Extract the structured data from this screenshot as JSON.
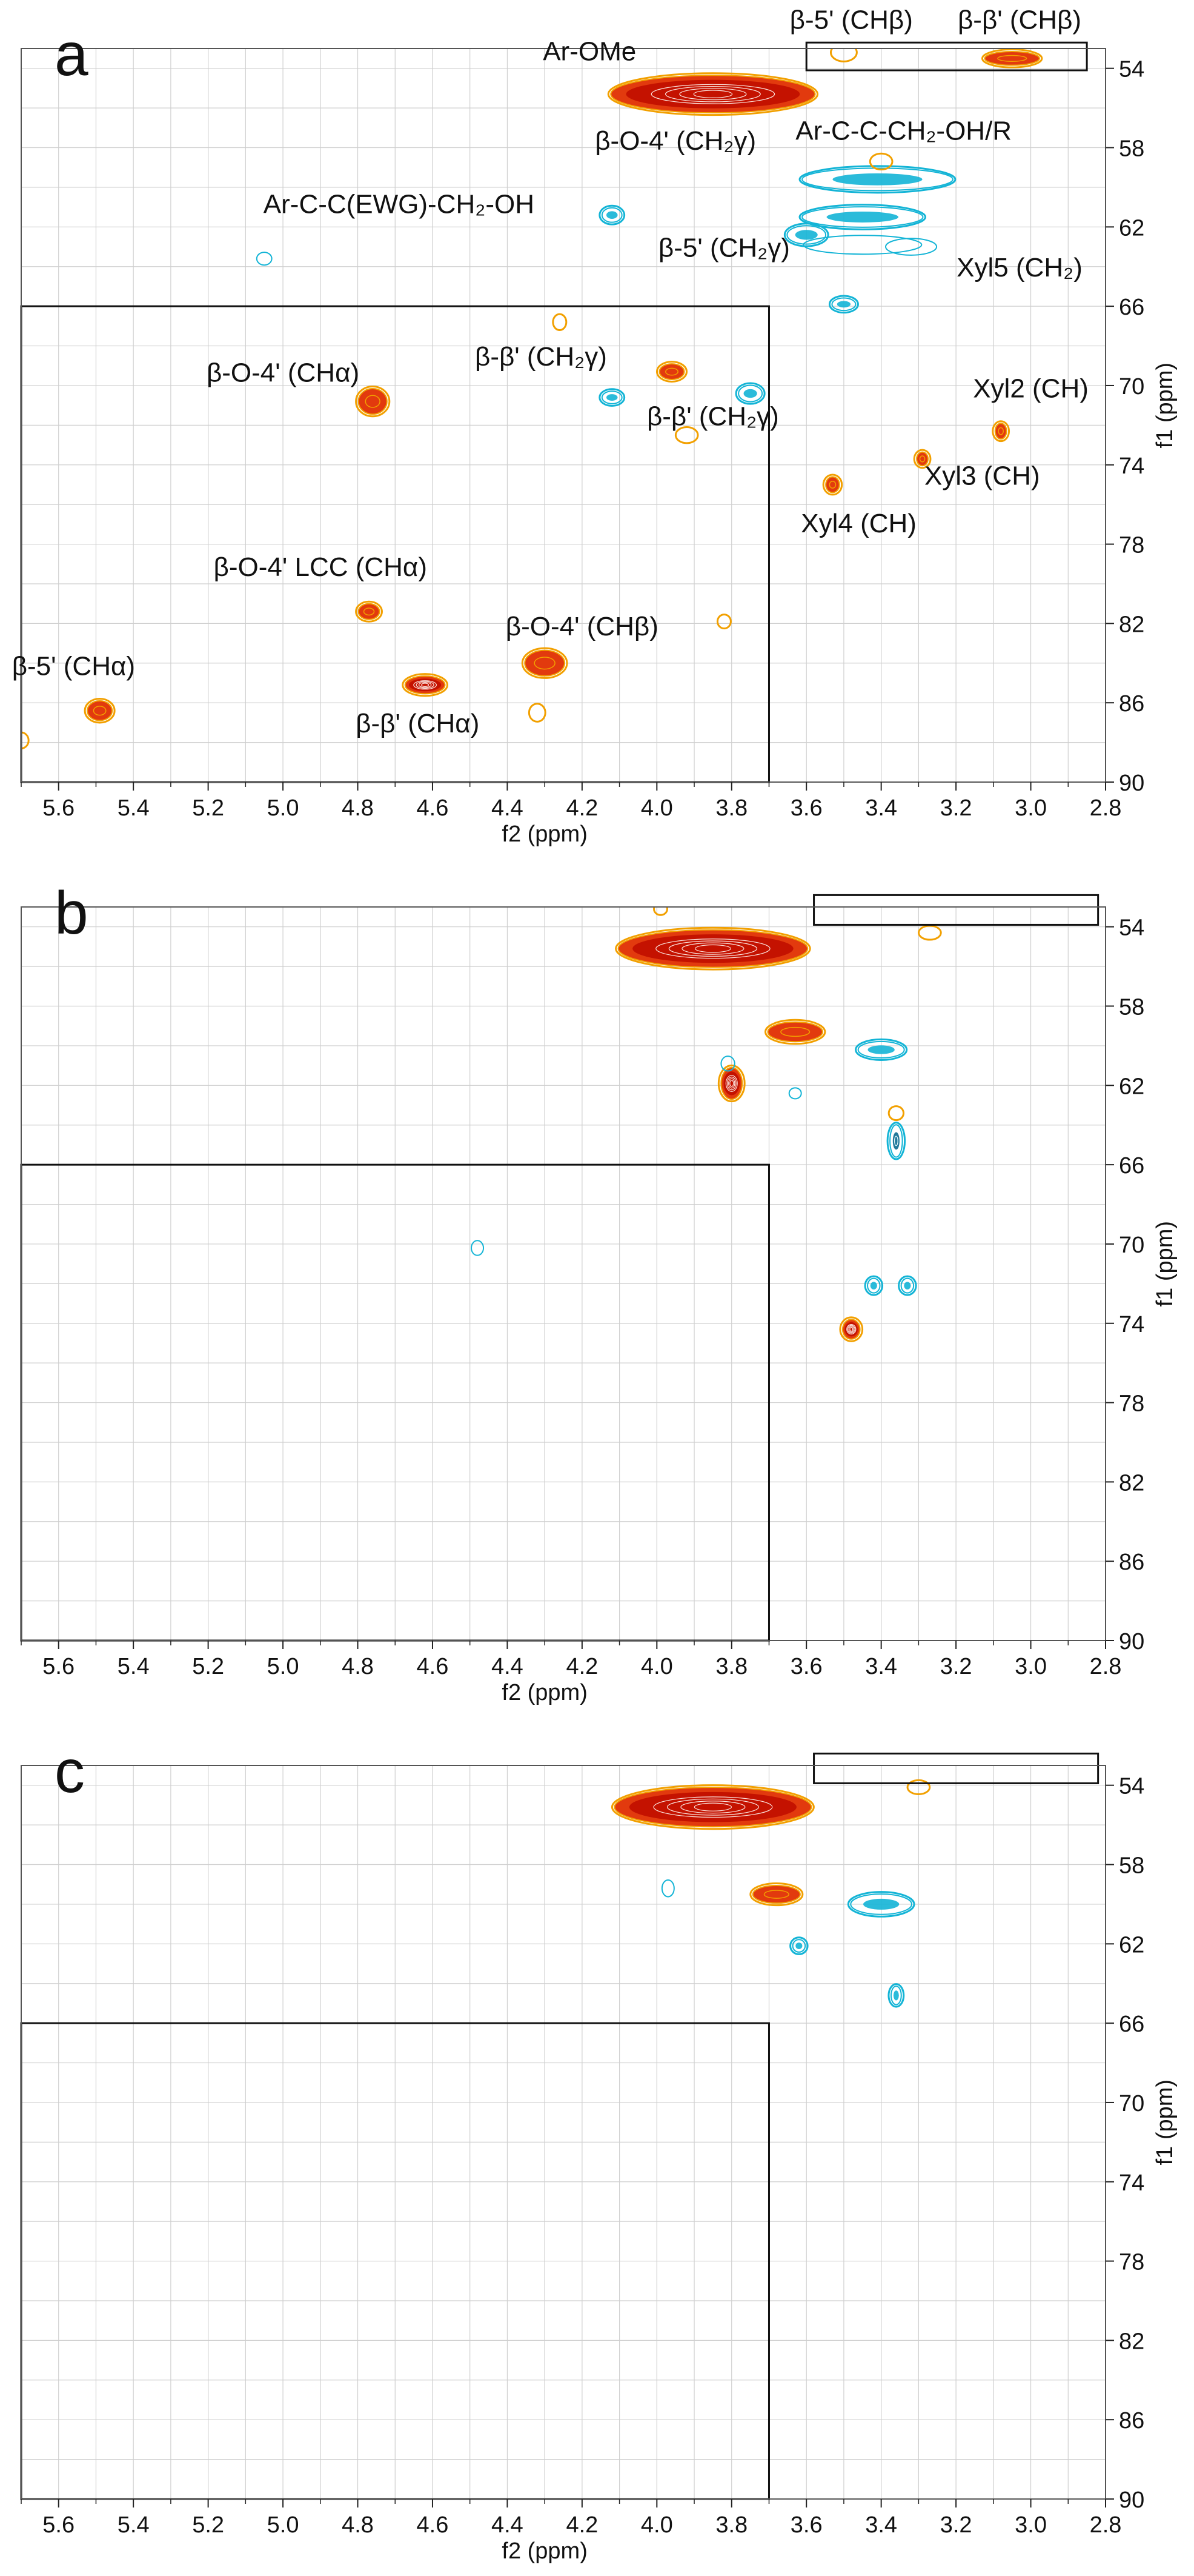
{
  "colors": {
    "positive_core": "#c41200",
    "positive_mid": "#e23a0e",
    "positive_edge": "#f2a000",
    "negative": "#13b4d6",
    "grid": "#cfcfcf",
    "frame": "#111111"
  },
  "chart_data": [
    {
      "type": "heatmap",
      "panel_label": "a",
      "xlabel": "f2 (ppm)",
      "ylabel": "f1 (ppm)",
      "xlim": [
        5.7,
        2.8
      ],
      "ylim": [
        53,
        90
      ],
      "x_ticks": [
        "5.6",
        "5.4",
        "5.2",
        "5.0",
        "4.8",
        "4.6",
        "4.4",
        "4.2",
        "4.0",
        "3.8",
        "3.6",
        "3.4",
        "3.2",
        "3.0",
        "2.8"
      ],
      "y_ticks": [
        "54",
        "58",
        "62",
        "66",
        "70",
        "74",
        "78",
        "82",
        "86",
        "90"
      ],
      "boxes": [
        {
          "x1": 5.7,
          "x2": 3.7,
          "y1": 66,
          "y2": 90
        },
        {
          "x1": 3.6,
          "x2": 2.85,
          "y1": 52.7,
          "y2": 54.1
        }
      ],
      "peaks": [
        {
          "x": 3.85,
          "y": 55.3,
          "w": 0.27,
          "h": 0.9,
          "sign": "+",
          "intensity": "strong"
        },
        {
          "x": 3.5,
          "y": 53.2,
          "w": 0.025,
          "h": 0.3,
          "sign": "+",
          "intensity": "weak"
        },
        {
          "x": 3.05,
          "y": 53.5,
          "w": 0.07,
          "h": 0.3,
          "sign": "+",
          "intensity": "medium"
        },
        {
          "x": 3.41,
          "y": 59.6,
          "w": 0.2,
          "h": 0.55,
          "sign": "-",
          "intensity": "medium"
        },
        {
          "x": 3.45,
          "y": 61.5,
          "w": 0.16,
          "h": 0.5,
          "sign": "-",
          "intensity": "medium"
        },
        {
          "x": 3.6,
          "y": 62.4,
          "w": 0.05,
          "h": 0.45,
          "sign": "-",
          "intensity": "medium"
        },
        {
          "x": 3.45,
          "y": 62.9,
          "w": 0.15,
          "h": 0.35,
          "sign": "-",
          "intensity": "weak"
        },
        {
          "x": 3.32,
          "y": 63.0,
          "w": 0.06,
          "h": 0.3,
          "sign": "-",
          "intensity": "weak"
        },
        {
          "x": 3.4,
          "y": 58.7,
          "w": 0.02,
          "h": 0.25,
          "sign": "+",
          "intensity": "weak"
        },
        {
          "x": 4.12,
          "y": 61.4,
          "w": 0.025,
          "h": 0.35,
          "sign": "-",
          "intensity": "medium"
        },
        {
          "x": 5.05,
          "y": 63.6,
          "w": 0.012,
          "h": 0.2,
          "sign": "-",
          "intensity": "weak"
        },
        {
          "x": 3.5,
          "y": 65.9,
          "w": 0.03,
          "h": 0.3,
          "sign": "-",
          "intensity": "medium"
        },
        {
          "x": 4.26,
          "y": 66.8,
          "w": 0.008,
          "h": 0.25,
          "sign": "+",
          "intensity": "weak"
        },
        {
          "x": 4.76,
          "y": 70.8,
          "w": 0.035,
          "h": 0.6,
          "sign": "+",
          "intensity": "medium"
        },
        {
          "x": 3.96,
          "y": 69.3,
          "w": 0.03,
          "h": 0.35,
          "sign": "+",
          "intensity": "medium"
        },
        {
          "x": 4.12,
          "y": 70.6,
          "w": 0.025,
          "h": 0.3,
          "sign": "-",
          "intensity": "medium"
        },
        {
          "x": 3.75,
          "y": 70.4,
          "w": 0.03,
          "h": 0.4,
          "sign": "-",
          "intensity": "medium"
        },
        {
          "x": 3.92,
          "y": 72.5,
          "w": 0.02,
          "h": 0.25,
          "sign": "+",
          "intensity": "weak"
        },
        {
          "x": 3.08,
          "y": 72.3,
          "w": 0.012,
          "h": 0.35,
          "sign": "+",
          "intensity": "medium"
        },
        {
          "x": 3.29,
          "y": 73.7,
          "w": 0.012,
          "h": 0.3,
          "sign": "+",
          "intensity": "medium"
        },
        {
          "x": 3.53,
          "y": 75.0,
          "w": 0.015,
          "h": 0.35,
          "sign": "+",
          "intensity": "medium"
        },
        {
          "x": 4.77,
          "y": 81.4,
          "w": 0.025,
          "h": 0.35,
          "sign": "+",
          "intensity": "medium"
        },
        {
          "x": 3.82,
          "y": 81.9,
          "w": 0.008,
          "h": 0.2,
          "sign": "+",
          "intensity": "weak"
        },
        {
          "x": 4.3,
          "y": 84.0,
          "w": 0.05,
          "h": 0.6,
          "sign": "+",
          "intensity": "medium"
        },
        {
          "x": 4.62,
          "y": 85.1,
          "w": 0.05,
          "h": 0.4,
          "sign": "+",
          "intensity": "strong"
        },
        {
          "x": 4.32,
          "y": 86.5,
          "w": 0.012,
          "h": 0.3,
          "sign": "+",
          "intensity": "weak"
        },
        {
          "x": 5.49,
          "y": 86.4,
          "w": 0.03,
          "h": 0.45,
          "sign": "+",
          "intensity": "medium"
        },
        {
          "x": 5.7,
          "y": 87.9,
          "w": 0.01,
          "h": 0.25,
          "sign": "+",
          "intensity": "weak"
        }
      ],
      "annotations": [
        {
          "text": "β-5' (CHβ)",
          "x": 3.48,
          "y": 52.0
        },
        {
          "text": "β-β' (CHβ)",
          "x": 3.03,
          "y": 52.0
        },
        {
          "text": "Ar-OMe",
          "x": 4.18,
          "y": 53.6
        },
        {
          "text": "β-O-4' (CH₂γ)",
          "x": 3.95,
          "y": 58.1
        },
        {
          "text": "Ar-C-C-CH₂-OH/R",
          "x": 3.34,
          "y": 57.6
        },
        {
          "text": "Ar-C-C(EWG)-CH₂-OH",
          "x": 4.69,
          "y": 61.3
        },
        {
          "text": "β-5' (CH₂γ)",
          "x": 3.82,
          "y": 63.5
        },
        {
          "text": "Xyl5 (CH₂)",
          "x": 3.03,
          "y": 64.5
        },
        {
          "text": "β-β' (CH₂γ)",
          "x": 4.31,
          "y": 69.0
        },
        {
          "text": "β-O-4' (CHα)",
          "x": 5.0,
          "y": 69.8
        },
        {
          "text": "β-β' (CH₂γ)",
          "x": 3.85,
          "y": 72.0
        },
        {
          "text": "Xyl2 (CH)",
          "x": 3.0,
          "y": 70.6
        },
        {
          "text": "Xyl3 (CH)",
          "x": 3.13,
          "y": 75.0
        },
        {
          "text": "Xyl4 (CH)",
          "x": 3.46,
          "y": 77.4
        },
        {
          "text": "β-O-4' LCC (CHα)",
          "x": 4.9,
          "y": 79.6
        },
        {
          "text": "β-O-4' (CHβ)",
          "x": 4.2,
          "y": 82.6
        },
        {
          "text": "β-5' (CHα)",
          "x": 5.56,
          "y": 84.6
        },
        {
          "text": "β-β' (CHα)",
          "x": 4.64,
          "y": 87.5
        }
      ]
    },
    {
      "type": "heatmap",
      "panel_label": "b",
      "xlabel": "f2 (ppm)",
      "ylabel": "f1 (ppm)",
      "xlim": [
        5.7,
        2.8
      ],
      "ylim": [
        53,
        90
      ],
      "x_ticks": [
        "5.6",
        "5.4",
        "5.2",
        "5.0",
        "4.8",
        "4.6",
        "4.4",
        "4.2",
        "4.0",
        "3.8",
        "3.6",
        "3.4",
        "3.2",
        "3.0",
        "2.8"
      ],
      "y_ticks": [
        "54",
        "58",
        "62",
        "66",
        "70",
        "74",
        "78",
        "82",
        "86",
        "90"
      ],
      "boxes": [
        {
          "x1": 5.7,
          "x2": 3.7,
          "y1": 66,
          "y2": 90
        },
        {
          "x1": 3.58,
          "x2": 2.82,
          "y1": 52.4,
          "y2": 53.9
        }
      ],
      "peaks": [
        {
          "x": 3.85,
          "y": 55.1,
          "w": 0.25,
          "h": 0.9,
          "sign": "+",
          "intensity": "strong"
        },
        {
          "x": 3.99,
          "y": 53.1,
          "w": 0.008,
          "h": 0.15,
          "sign": "+",
          "intensity": "weak"
        },
        {
          "x": 3.27,
          "y": 54.3,
          "w": 0.02,
          "h": 0.2,
          "sign": "+",
          "intensity": "weak"
        },
        {
          "x": 3.63,
          "y": 59.3,
          "w": 0.07,
          "h": 0.45,
          "sign": "+",
          "intensity": "medium"
        },
        {
          "x": 3.4,
          "y": 60.2,
          "w": 0.06,
          "h": 0.4,
          "sign": "-",
          "intensity": "medium"
        },
        {
          "x": 3.8,
          "y": 61.9,
          "w": 0.025,
          "h": 0.75,
          "sign": "+",
          "intensity": "strong"
        },
        {
          "x": 3.81,
          "y": 60.9,
          "w": 0.01,
          "h": 0.25,
          "sign": "-",
          "intensity": "weak"
        },
        {
          "x": 3.63,
          "y": 62.4,
          "w": 0.006,
          "h": 0.15,
          "sign": "-",
          "intensity": "weak"
        },
        {
          "x": 3.36,
          "y": 64.8,
          "w": 0.015,
          "h": 0.8,
          "sign": "-",
          "intensity": "strong"
        },
        {
          "x": 3.36,
          "y": 63.4,
          "w": 0.01,
          "h": 0.2,
          "sign": "+",
          "intensity": "weak"
        },
        {
          "x": 4.48,
          "y": 70.2,
          "w": 0.005,
          "h": 0.25,
          "sign": "-",
          "intensity": "weak"
        },
        {
          "x": 3.42,
          "y": 72.1,
          "w": 0.015,
          "h": 0.35,
          "sign": "-",
          "intensity": "medium"
        },
        {
          "x": 3.33,
          "y": 72.1,
          "w": 0.015,
          "h": 0.35,
          "sign": "-",
          "intensity": "medium"
        },
        {
          "x": 3.48,
          "y": 74.3,
          "w": 0.02,
          "h": 0.45,
          "sign": "+",
          "intensity": "strong"
        }
      ],
      "annotations": []
    },
    {
      "type": "heatmap",
      "panel_label": "c",
      "xlabel": "f2 (ppm)",
      "ylabel": "f1 (ppm)",
      "xlim": [
        5.7,
        2.8
      ],
      "ylim": [
        53,
        90
      ],
      "x_ticks": [
        "5.6",
        "5.4",
        "5.2",
        "5.0",
        "4.8",
        "4.6",
        "4.4",
        "4.2",
        "4.0",
        "3.8",
        "3.6",
        "3.4",
        "3.2",
        "3.0",
        "2.8"
      ],
      "y_ticks": [
        "54",
        "58",
        "62",
        "66",
        "70",
        "74",
        "78",
        "82",
        "86",
        "90"
      ],
      "boxes": [
        {
          "x1": 5.7,
          "x2": 3.7,
          "y1": 66,
          "y2": 90
        },
        {
          "x1": 3.58,
          "x2": 2.82,
          "y1": 52.4,
          "y2": 53.9
        }
      ],
      "peaks": [
        {
          "x": 3.85,
          "y": 55.1,
          "w": 0.26,
          "h": 0.95,
          "sign": "+",
          "intensity": "strong"
        },
        {
          "x": 3.3,
          "y": 54.1,
          "w": 0.02,
          "h": 0.2,
          "sign": "+",
          "intensity": "weak"
        },
        {
          "x": 3.68,
          "y": 59.5,
          "w": 0.06,
          "h": 0.4,
          "sign": "+",
          "intensity": "medium"
        },
        {
          "x": 3.4,
          "y": 60.0,
          "w": 0.08,
          "h": 0.5,
          "sign": "-",
          "intensity": "medium"
        },
        {
          "x": 3.97,
          "y": 59.2,
          "w": 0.007,
          "h": 0.3,
          "sign": "-",
          "intensity": "weak"
        },
        {
          "x": 3.62,
          "y": 62.1,
          "w": 0.015,
          "h": 0.3,
          "sign": "-",
          "intensity": "medium"
        },
        {
          "x": 3.36,
          "y": 64.6,
          "w": 0.012,
          "h": 0.45,
          "sign": "-",
          "intensity": "medium"
        }
      ],
      "annotations": []
    }
  ]
}
